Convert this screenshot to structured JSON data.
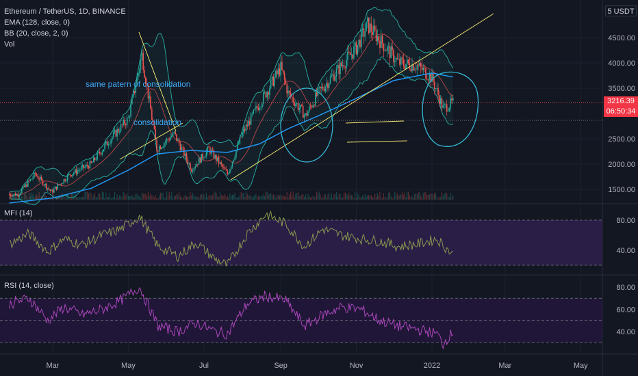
{
  "header": {
    "symbol": "Ethereum / TetherUS, 1D, BINANCE",
    "ema_label": "EMA (128, close, 0)",
    "bb_label": "BB (20, close, 2, 0)",
    "vol_label": "Vol",
    "currency": "5 USDT"
  },
  "last_price": {
    "value": "3216.39",
    "countdown": "06:50:34"
  },
  "annotations": {
    "pattern_note": "same patern of consolidation",
    "consolidation_note": "consolidation"
  },
  "colors": {
    "background": "#131722",
    "up": "#26a69a",
    "down": "#ef5350",
    "ema": "#2196f3",
    "bb_basis": "#d3494e",
    "bb_bands": "#26a69a",
    "trendline": "#f0e66e",
    "annotation": "#3fa8f5",
    "circle": "#35b8d4",
    "mfi": "#8a9a4e",
    "rsi": "#ab47bc",
    "mfi_band": "#2d1e4a",
    "rsi_band": "#22163a"
  },
  "chart_data": [
    {
      "type": "candlestick",
      "title": "Ethereum / TetherUS, 1D, BINANCE",
      "y_axis_ticks": [
        "4500.00",
        "4000.00",
        "3500.00",
        "2500.00",
        "2000.00",
        "1500.00"
      ],
      "ylim": [
        1200,
        4950
      ],
      "x_axis_ticks": [
        "Mar",
        "May",
        "Jul",
        "Sep",
        "Nov",
        "2022",
        "Mar",
        "May"
      ],
      "close_series": {
        "dates": [
          "2021-02-01",
          "2021-02-15",
          "2021-02-28",
          "2021-03-15",
          "2021-04-01",
          "2021-04-15",
          "2021-05-01",
          "2021-05-12",
          "2021-05-24",
          "2021-06-07",
          "2021-06-21",
          "2021-07-05",
          "2021-07-20",
          "2021-08-01",
          "2021-08-15",
          "2021-09-01",
          "2021-09-07",
          "2021-09-21",
          "2021-10-01",
          "2021-10-15",
          "2021-11-01",
          "2021-11-10",
          "2021-11-25",
          "2021-12-05",
          "2021-12-20",
          "2022-01-01",
          "2022-01-10",
          "2022-01-18"
        ],
        "values": [
          1400,
          1800,
          1450,
          1800,
          2000,
          2450,
          2900,
          4150,
          2300,
          2600,
          1900,
          2300,
          1800,
          2600,
          3200,
          3900,
          3400,
          2950,
          3400,
          3800,
          4300,
          4750,
          4300,
          4000,
          3950,
          3700,
          3100,
          3216
        ]
      },
      "ema_128": {
        "dates": [
          "2021-01-25",
          "2021-03-01",
          "2021-04-01",
          "2021-05-01",
          "2021-05-24",
          "2021-06-21",
          "2021-07-20",
          "2021-08-15",
          "2021-09-07",
          "2021-10-01",
          "2021-11-01",
          "2021-12-01",
          "2022-01-01",
          "2022-01-18"
        ],
        "values": [
          1230,
          1330,
          1520,
          1880,
          2200,
          2270,
          2230,
          2400,
          2700,
          2950,
          3300,
          3650,
          3800,
          3720
        ]
      },
      "last_price": 3216.39
    },
    {
      "type": "line",
      "title": "MFI (14)",
      "y_axis_ticks": [
        "80.00",
        "40.00"
      ],
      "ylim": [
        15,
        95
      ],
      "bands": [
        20,
        80
      ],
      "x": [
        "2021-01-25",
        "2021-02-10",
        "2021-02-25",
        "2021-03-10",
        "2021-03-25",
        "2021-04-10",
        "2021-04-25",
        "2021-05-10",
        "2021-05-25",
        "2021-06-10",
        "2021-06-25",
        "2021-07-10",
        "2021-07-20",
        "2021-08-05",
        "2021-08-20",
        "2021-09-05",
        "2021-09-20",
        "2021-10-05",
        "2021-10-20",
        "2021-11-05",
        "2021-11-20",
        "2021-12-05",
        "2021-12-20",
        "2022-01-05",
        "2022-01-18"
      ],
      "values": [
        48,
        62,
        38,
        55,
        47,
        60,
        68,
        85,
        45,
        32,
        50,
        28,
        20,
        62,
        88,
        75,
        45,
        68,
        60,
        55,
        52,
        45,
        48,
        55,
        34
      ]
    },
    {
      "type": "line",
      "title": "RSI (14, close)",
      "y_axis_ticks": [
        "80.00",
        "60.00",
        "40.00"
      ],
      "ylim": [
        23,
        87
      ],
      "bands": [
        30,
        70
      ],
      "midline": 50,
      "x": [
        "2021-01-25",
        "2021-02-10",
        "2021-02-25",
        "2021-03-10",
        "2021-03-25",
        "2021-04-10",
        "2021-04-25",
        "2021-05-10",
        "2021-05-25",
        "2021-06-10",
        "2021-06-25",
        "2021-07-10",
        "2021-07-20",
        "2021-08-05",
        "2021-08-20",
        "2021-09-05",
        "2021-09-20",
        "2021-10-05",
        "2021-10-20",
        "2021-11-05",
        "2021-11-20",
        "2021-12-05",
        "2021-12-20",
        "2022-01-05",
        "2022-01-10",
        "2022-01-18"
      ],
      "values": [
        65,
        70,
        50,
        62,
        55,
        60,
        68,
        80,
        45,
        40,
        48,
        40,
        38,
        65,
        72,
        68,
        45,
        55,
        62,
        60,
        50,
        45,
        42,
        38,
        29,
        40
      ]
    }
  ]
}
